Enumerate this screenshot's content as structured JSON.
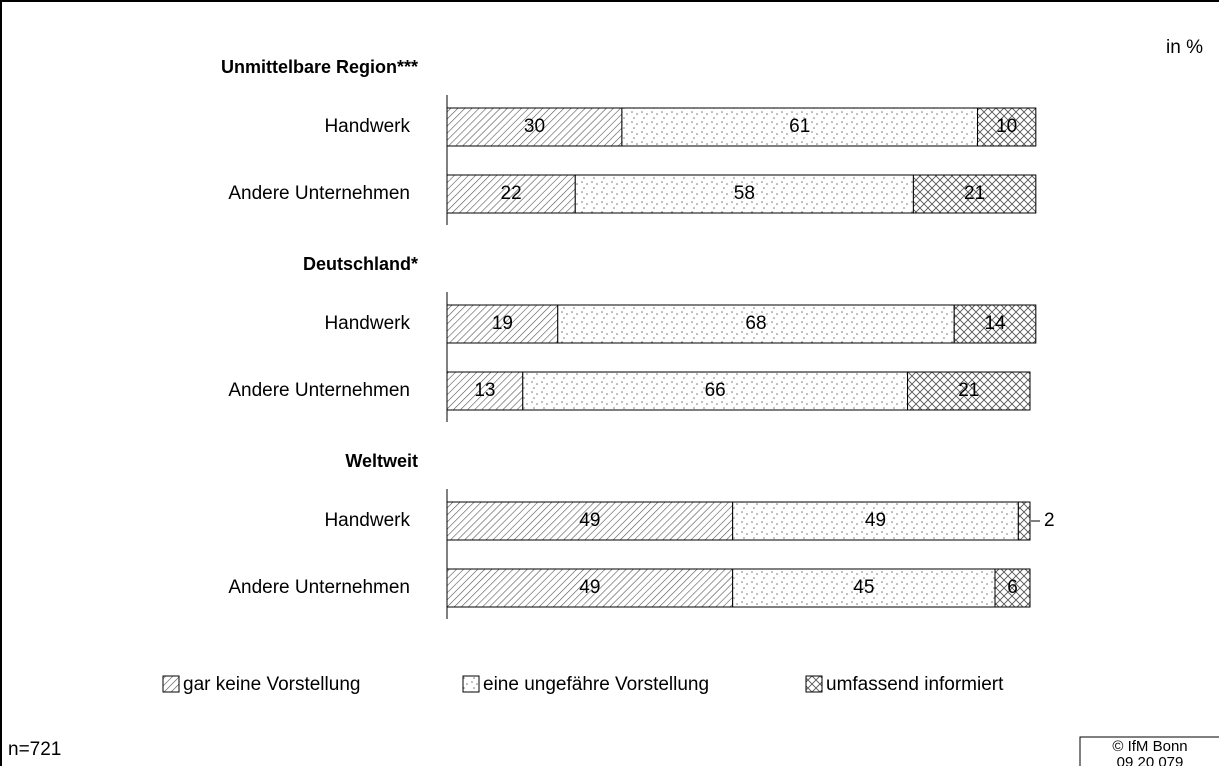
{
  "chart_data": {
    "type": "stacked-barh",
    "unit_note": "in %",
    "groups": [
      {
        "title": "Unmittelbare Region***",
        "categories": [
          "Handwerk",
          "Andere Unternehmen"
        ]
      },
      {
        "title": "Deutschland*",
        "categories": [
          "Handwerk",
          "Andere Unternehmen"
        ]
      },
      {
        "title": "Weltweit",
        "categories": [
          "Handwerk",
          "Andere Unternehmen"
        ]
      }
    ],
    "series": [
      {
        "name": "gar keine Vorstellung",
        "pattern": "diagonal",
        "values": [
          30,
          22,
          19,
          13,
          49,
          49
        ]
      },
      {
        "name": "eine ungefähre Vorstellung",
        "pattern": "dots",
        "values": [
          61,
          58,
          68,
          66,
          49,
          45
        ]
      },
      {
        "name": "umfassend informiert",
        "pattern": "cross",
        "values": [
          10,
          21,
          14,
          21,
          2,
          6
        ]
      }
    ],
    "xlim": [
      0,
      100
    ],
    "footnote": "n=721",
    "source": [
      "© IfM Bonn",
      "09 20 079"
    ]
  }
}
